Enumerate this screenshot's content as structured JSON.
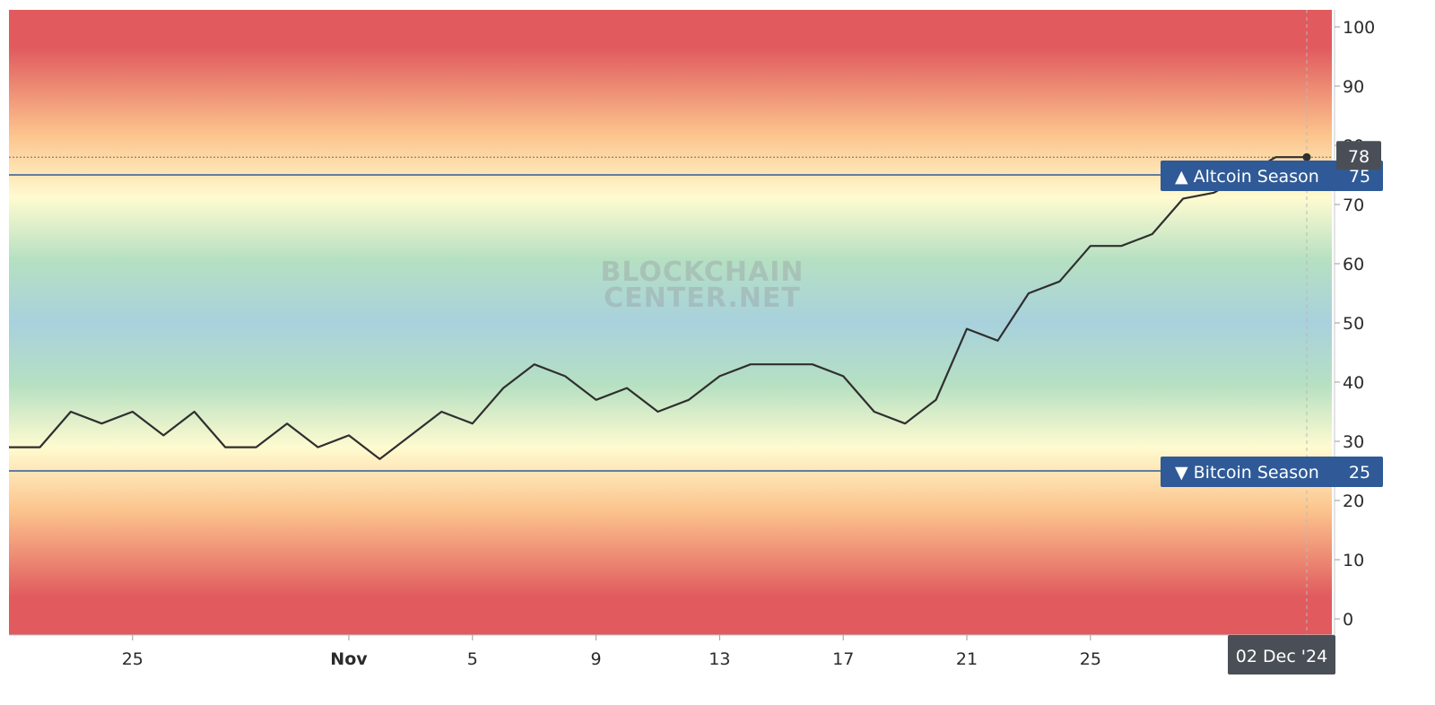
{
  "chart_data": {
    "type": "line",
    "title": "",
    "xlabel": "",
    "ylabel": "",
    "ylim": [
      0,
      100
    ],
    "yticks": [
      0,
      10,
      20,
      30,
      40,
      50,
      60,
      70,
      80,
      90,
      100
    ],
    "x_tick_labels": [
      "25",
      "Nov",
      "5",
      "9",
      "13",
      "17",
      "21",
      "25"
    ],
    "x_tick_dates": [
      "2024-10-25",
      "2024-11-01",
      "2024-11-05",
      "2024-11-09",
      "2024-11-13",
      "2024-11-17",
      "2024-11-21",
      "2024-11-25"
    ],
    "x": [
      "2024-10-21",
      "2024-10-22",
      "2024-10-23",
      "2024-10-24",
      "2024-10-25",
      "2024-10-26",
      "2024-10-27",
      "2024-10-28",
      "2024-10-29",
      "2024-10-30",
      "2024-10-31",
      "2024-11-01",
      "2024-11-02",
      "2024-11-03",
      "2024-11-04",
      "2024-11-05",
      "2024-11-06",
      "2024-11-07",
      "2024-11-08",
      "2024-11-09",
      "2024-11-10",
      "2024-11-11",
      "2024-11-12",
      "2024-11-13",
      "2024-11-14",
      "2024-11-15",
      "2024-11-16",
      "2024-11-17",
      "2024-11-18",
      "2024-11-19",
      "2024-11-20",
      "2024-11-21",
      "2024-11-22",
      "2024-11-23",
      "2024-11-24",
      "2024-11-25",
      "2024-11-26",
      "2024-11-27",
      "2024-11-28",
      "2024-11-29",
      "2024-11-30",
      "2024-12-01",
      "2024-12-02"
    ],
    "series": [
      {
        "values": [
          29,
          29,
          35,
          33,
          35,
          31,
          35,
          29,
          29,
          33,
          29,
          31,
          27,
          31,
          35,
          33,
          39,
          43,
          41,
          37,
          39,
          35,
          37,
          41,
          43,
          43,
          43,
          41,
          35,
          33,
          37,
          49,
          47,
          55,
          57,
          63,
          63,
          65,
          71,
          72,
          75,
          78,
          78
        ],
        "color": "#2f2f2f"
      }
    ],
    "thresholds": [
      {
        "label": "▲ Altcoin Season",
        "value": "75",
        "y": 75,
        "color": "#2f5a97"
      },
      {
        "label": "▼ Bitcoin Season",
        "value": "25",
        "y": 25,
        "color": "#2f5a97"
      }
    ],
    "last_value": {
      "label": "78",
      "y": 78,
      "color": "#4a4f57"
    },
    "crosshair_date": {
      "label": "02 Dec '24",
      "color": "#4a4f57"
    },
    "watermark": [
      "BLOCKCHAIN",
      "CENTER.NET"
    ],
    "background_bands": {
      "red": "#e05a5e",
      "orange": "#fcc48d",
      "yellow": "#fffbd0",
      "green": "#b6e0c2",
      "blue": "#a8d1dd"
    },
    "grid": false
  }
}
